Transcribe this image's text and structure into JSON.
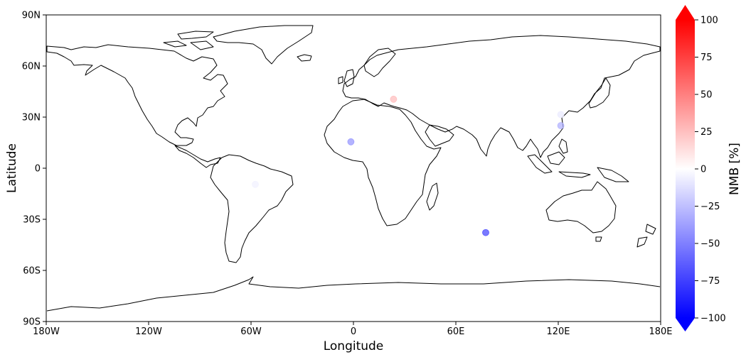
{
  "chart_data": {
    "type": "scatter",
    "projection": "PlateCarree",
    "xlabel": "Longitude",
    "ylabel": "Latitude",
    "xlim": [
      -180,
      180
    ],
    "ylim": [
      -90,
      90
    ],
    "xticks": [
      {
        "value": -180,
        "label": "180W"
      },
      {
        "value": -120,
        "label": "120W"
      },
      {
        "value": -60,
        "label": "60W"
      },
      {
        "value": 0,
        "label": "0"
      },
      {
        "value": 60,
        "label": "60E"
      },
      {
        "value": 120,
        "label": "120E"
      },
      {
        "value": 180,
        "label": "180E"
      }
    ],
    "yticks": [
      {
        "value": 90,
        "label": "90N"
      },
      {
        "value": 60,
        "label": "60N"
      },
      {
        "value": 30,
        "label": "30N"
      },
      {
        "value": 0,
        "label": "0"
      },
      {
        "value": -30,
        "label": "30S"
      },
      {
        "value": -60,
        "label": "60S"
      },
      {
        "value": -90,
        "label": "90S"
      }
    ],
    "grid": false,
    "points": [
      {
        "lon": 23.5,
        "lat": 40.5,
        "value": 25
      },
      {
        "lon": -1.5,
        "lat": 15.5,
        "value": -40
      },
      {
        "lon": 77.5,
        "lat": -37.8,
        "value": -70
      },
      {
        "lon": 121.5,
        "lat": 31.5,
        "value": -8
      },
      {
        "lon": 121.5,
        "lat": 25.0,
        "value": -30
      },
      {
        "lon": -57.5,
        "lat": -9.5,
        "value": -5
      }
    ],
    "colorbar": {
      "label": "NMB [%]",
      "cmap": "bwr",
      "range": [
        -100,
        100
      ],
      "extend": "both",
      "ticks": [
        {
          "value": 100,
          "label": "100"
        },
        {
          "value": 75,
          "label": "75"
        },
        {
          "value": 50,
          "label": "50"
        },
        {
          "value": 25,
          "label": "25"
        },
        {
          "value": 0,
          "label": "0"
        },
        {
          "value": -25,
          "label": "−25"
        },
        {
          "value": -50,
          "label": "−50"
        },
        {
          "value": -75,
          "label": "−75"
        },
        {
          "value": -100,
          "label": "−100"
        }
      ],
      "color_low": "#0000ff",
      "color_mid": "#ffffff",
      "color_high": "#ff0000"
    }
  }
}
